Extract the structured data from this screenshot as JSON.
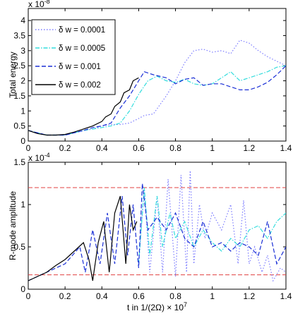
{
  "chart_data": [
    {
      "type": "line",
      "panel": "top",
      "ylabel": "Total energy",
      "y_exponent_label": "x 10",
      "y_exponent": "-8",
      "xlim": [
        0,
        1.4
      ],
      "ylim": [
        0,
        4.4
      ],
      "xticks": [
        "0",
        "0.2",
        "0.4",
        "0.6",
        "0.8",
        "1",
        "1.2",
        "1.4"
      ],
      "yticks": [
        "0",
        "0.5",
        "1",
        "1.5",
        "2",
        "2.5",
        "3",
        "3.5",
        "4"
      ],
      "grid": false,
      "legend": "top-left",
      "legend_entries": [
        "δ w = 0.0001",
        "δ w = 0.0005",
        "δ w = 0.001",
        "δ w = 0.002"
      ],
      "series": [
        {
          "name": "δ w = 0.0001",
          "color": "#7b7bff",
          "dash": "dotted",
          "x": [
            0,
            0.1,
            0.2,
            0.3,
            0.35,
            0.4,
            0.45,
            0.5,
            0.55,
            0.6,
            0.63,
            0.68,
            0.75,
            0.8,
            0.85,
            0.9,
            0.95,
            1.0,
            1.05,
            1.1,
            1.15,
            1.2,
            1.25,
            1.3,
            1.35,
            1.4
          ],
          "y": [
            0.35,
            0.2,
            0.2,
            0.35,
            0.4,
            0.5,
            0.55,
            0.55,
            0.6,
            0.75,
            0.85,
            0.9,
            1.5,
            2.0,
            2.6,
            3.0,
            3.05,
            2.95,
            3.0,
            2.9,
            3.35,
            3.25,
            3.0,
            2.8,
            2.65,
            2.5
          ]
        },
        {
          "name": "δ w = 0.0005",
          "color": "#33dddd",
          "dash": "dashdot",
          "x": [
            0,
            0.1,
            0.2,
            0.3,
            0.35,
            0.4,
            0.45,
            0.5,
            0.55,
            0.6,
            0.65,
            0.7,
            0.75,
            0.8,
            0.85,
            0.9,
            0.95,
            1.0,
            1.05,
            1.1,
            1.15,
            1.2,
            1.25,
            1.3,
            1.35,
            1.4
          ],
          "y": [
            0.35,
            0.2,
            0.2,
            0.35,
            0.4,
            0.45,
            0.5,
            0.6,
            1.0,
            1.55,
            2.0,
            2.15,
            2.0,
            1.95,
            2.05,
            1.9,
            1.85,
            1.9,
            2.1,
            2.3,
            2.0,
            2.1,
            2.2,
            2.3,
            2.45,
            2.5
          ]
        },
        {
          "name": "δ w = 0.001",
          "color": "#1a2fd6",
          "dash": "dashed",
          "x": [
            0,
            0.1,
            0.2,
            0.3,
            0.35,
            0.4,
            0.45,
            0.5,
            0.55,
            0.6,
            0.63,
            0.68,
            0.75,
            0.8,
            0.85,
            0.9,
            0.95,
            1.0,
            1.05,
            1.1,
            1.15,
            1.2,
            1.25,
            1.3,
            1.35,
            1.4
          ],
          "y": [
            0.35,
            0.2,
            0.2,
            0.35,
            0.45,
            0.5,
            0.6,
            1.1,
            1.5,
            2.0,
            2.3,
            2.2,
            2.1,
            1.9,
            2.05,
            2.1,
            1.85,
            1.9,
            1.9,
            1.8,
            1.7,
            1.7,
            1.8,
            1.95,
            2.2,
            2.5
          ]
        },
        {
          "name": "δ w = 0.002",
          "color": "#000000",
          "dash": "solid",
          "x": [
            0,
            0.05,
            0.1,
            0.15,
            0.2,
            0.25,
            0.3,
            0.35,
            0.4,
            0.42,
            0.45,
            0.47,
            0.5,
            0.52,
            0.55,
            0.57,
            0.6
          ],
          "y": [
            0.35,
            0.25,
            0.2,
            0.2,
            0.22,
            0.3,
            0.4,
            0.5,
            0.65,
            0.8,
            0.9,
            1.15,
            1.3,
            1.6,
            1.7,
            2.0,
            2.1
          ]
        }
      ]
    },
    {
      "type": "line",
      "panel": "bottom",
      "ylabel": "R-mode amplitude",
      "xlabel": "t in 1/(2Ω) × 10",
      "xlabel_exponent": "7",
      "y_exponent_label": "x 10",
      "y_exponent": "-4",
      "xlim": [
        0,
        1.4
      ],
      "ylim": [
        0,
        1.5
      ],
      "xticks": [
        "0",
        "0.2",
        "0.4",
        "0.6",
        "0.8",
        "1",
        "1.2",
        "1.4"
      ],
      "yticks": [
        "0",
        "0.5",
        "1",
        "1.5"
      ],
      "grid": false,
      "reference_lines": [
        {
          "y": 1.2,
          "color": "#e04040",
          "dash": "dashed"
        },
        {
          "y": 0.17,
          "color": "#e04040",
          "dash": "dashed"
        }
      ],
      "series": [
        {
          "name": "δ w = 0.0001",
          "color": "#7b7bff",
          "dash": "dotted",
          "x": [
            0.6,
            0.63,
            0.66,
            0.7,
            0.73,
            0.76,
            0.8,
            0.83,
            0.86,
            0.88,
            0.9,
            0.93,
            0.96,
            1.0,
            1.05,
            1.1,
            1.14,
            1.17,
            1.2,
            1.23,
            1.27,
            1.3,
            1.33,
            1.37,
            1.4
          ],
          "y": [
            0.3,
            1.2,
            0.2,
            1.1,
            0.2,
            1.3,
            0.15,
            1.35,
            0.2,
            1.4,
            0.3,
            1.0,
            0.6,
            0.9,
            0.7,
            1.0,
            0.3,
            1.05,
            0.3,
            0.5,
            0.2,
            0.4,
            0.1,
            0.25,
            0.2
          ]
        },
        {
          "name": "δ w = 0.0005",
          "color": "#33dddd",
          "dash": "dashdot",
          "x": [
            0.6,
            0.63,
            0.66,
            0.7,
            0.73,
            0.77,
            0.8,
            0.85,
            0.9,
            0.95,
            1.0,
            1.05,
            1.1,
            1.15,
            1.2,
            1.25,
            1.3,
            1.35,
            1.4
          ],
          "y": [
            0.3,
            1.2,
            0.4,
            1.1,
            0.5,
            0.9,
            0.6,
            0.8,
            0.5,
            0.7,
            0.55,
            0.45,
            0.6,
            0.5,
            0.7,
            0.75,
            0.6,
            0.8,
            0.9
          ]
        },
        {
          "name": "δ w = 0.001",
          "color": "#1a2fd6",
          "dash": "dashed",
          "x": [
            0,
            0.1,
            0.2,
            0.28,
            0.31,
            0.35,
            0.39,
            0.43,
            0.47,
            0.51,
            0.54,
            0.57,
            0.6,
            0.62,
            0.65,
            0.7,
            0.75,
            0.8,
            0.85,
            0.9,
            0.95,
            1.0,
            1.05,
            1.1,
            1.15,
            1.2,
            1.25,
            1.3,
            1.35,
            1.4
          ],
          "y": [
            0.1,
            0.2,
            0.3,
            0.5,
            0.2,
            0.7,
            0.3,
            0.9,
            0.3,
            1.1,
            0.4,
            1.0,
            0.25,
            1.25,
            0.7,
            0.85,
            0.7,
            0.9,
            0.6,
            0.5,
            0.8,
            0.5,
            0.55,
            0.45,
            0.55,
            0.5,
            0.4,
            0.8,
            0.3,
            0.5
          ]
        },
        {
          "name": "δ w = 0.002",
          "color": "#000000",
          "dash": "solid",
          "x": [
            0,
            0.05,
            0.1,
            0.15,
            0.2,
            0.25,
            0.3,
            0.33,
            0.35,
            0.38,
            0.41,
            0.44,
            0.47,
            0.5,
            0.53,
            0.55,
            0.57,
            0.59
          ],
          "y": [
            0.1,
            0.15,
            0.2,
            0.28,
            0.35,
            0.45,
            0.55,
            0.35,
            0.1,
            0.55,
            0.8,
            0.2,
            0.9,
            1.1,
            0.3,
            1.0,
            0.7,
            0.8
          ]
        }
      ]
    }
  ]
}
